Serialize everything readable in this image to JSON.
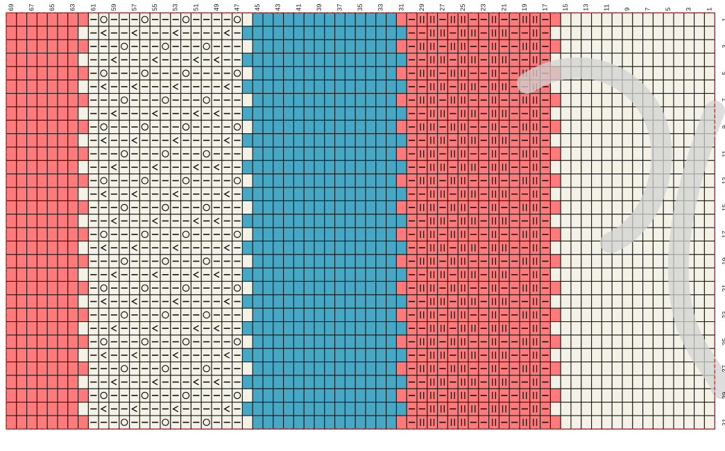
{
  "chart_data": {
    "type": "knitting-chart",
    "columns_total": 69,
    "rows_total": 31,
    "column_numbering": "right-to-left",
    "row_numbering": "top-to-bottom",
    "column_labels": [
      "69",
      "67",
      "65",
      "63",
      "61",
      "59",
      "57",
      "55",
      "53",
      "51",
      "49",
      "47",
      "45",
      "43",
      "41",
      "39",
      "37",
      "35",
      "33",
      "31",
      "29",
      "27",
      "25",
      "23",
      "21",
      "19",
      "17",
      "15",
      "13",
      "11",
      "9",
      "7",
      "5",
      "3",
      "1"
    ],
    "row_labels": [
      "1",
      "3",
      "5",
      "7",
      "9",
      "11",
      "13",
      "15",
      "17",
      "19",
      "21",
      "23",
      "25",
      "27",
      "29",
      "31"
    ],
    "colors": {
      "red": "#ff7b7b",
      "cream": "#f4f1e6",
      "blue": "#46a8c4",
      "grid": "#1a1a1a",
      "dashed_border": "#d8282a",
      "watermark": "#d2d2d2"
    },
    "zones": [
      {
        "columns": [
          63,
          69
        ],
        "color": "red",
        "pattern": "plain"
      },
      {
        "columns": [
          62,
          62
        ],
        "color": "alternating",
        "pattern": "edge-odd-red-even-cream"
      },
      {
        "columns": [
          47,
          61
        ],
        "color": "cream",
        "pattern": "lace"
      },
      {
        "columns": [
          46,
          46
        ],
        "color": "alternating",
        "pattern": "edge-odd-cream-even-blue"
      },
      {
        "columns": [
          32,
          45
        ],
        "color": "blue",
        "pattern": "plain"
      },
      {
        "columns": [
          31,
          31
        ],
        "color": "alternating",
        "pattern": "edge-odd-red-even-blue"
      },
      {
        "columns": [
          17,
          30
        ],
        "color": "red",
        "pattern": "rib-texture"
      },
      {
        "columns": [
          16,
          16
        ],
        "color": "alternating",
        "pattern": "edge-odd-red-even-cream"
      },
      {
        "columns": [
          1,
          15
        ],
        "color": "cream",
        "pattern": "plain"
      }
    ],
    "symbols": {
      "purl": "horizontal-bar",
      "yarn_over": "circle",
      "decrease": "wedge",
      "knit_tbl": "double-vertical-bars"
    },
    "lace_repeat": {
      "columns": [
        47,
        61
      ],
      "rows_per_repeat": 4,
      "yarn_over_columns_rows_1_mod_4": [
        47,
        52,
        56,
        60
      ],
      "yarn_over_columns_rows_3_mod_4": [
        50,
        54,
        58
      ],
      "decrease_columns_rows_2_mod_4": [
        48,
        53,
        57,
        60
      ],
      "decrease_columns_rows_0_mod_4": [
        49,
        51,
        55,
        59
      ]
    },
    "rib_texture": {
      "columns": [
        17,
        30
      ],
      "double_bar_columns_odd_rows": [
        18,
        19,
        22,
        25,
        26,
        28,
        29
      ],
      "double_bar_columns_even_rows": [
        18,
        21,
        22,
        24,
        25,
        27,
        28
      ]
    }
  }
}
